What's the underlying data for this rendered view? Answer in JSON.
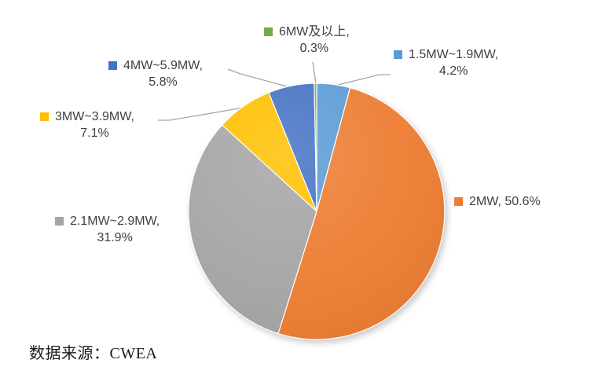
{
  "chart_data": {
    "type": "pie",
    "title": "",
    "start_angle_deg": 0,
    "direction": "clockwise",
    "total_percent": 99.9,
    "slices": [
      {
        "label": "1.5MW~1.9MW",
        "value": 4.2,
        "color": "#5B9BD5",
        "line1": "1.5MW~1.9MW,",
        "line2": "4.2%"
      },
      {
        "label": "2MW",
        "value": 50.6,
        "color": "#ED7D31",
        "line1": "2MW, 50.6%",
        "line2": ""
      },
      {
        "label": "2.1MW~2.9MW",
        "value": 31.9,
        "color": "#A5A5A5",
        "line1": "2.1MW~2.9MW,",
        "line2": "31.9%"
      },
      {
        "label": "3MW~3.9MW",
        "value": 7.1,
        "color": "#FFC000",
        "line1": "3MW~3.9MW,",
        "line2": "7.1%"
      },
      {
        "label": "4MW~5.9MW",
        "value": 5.8,
        "color": "#4472C4",
        "line1": "4MW~5.9MW,",
        "line2": "5.8%"
      },
      {
        "label": "6MW及以上",
        "value": 0.3,
        "color": "#70AD47",
        "line1": "6MW及以上,",
        "line2": "0.3%"
      }
    ],
    "legend_position": "outside-data-labels",
    "leader_line_color": "#A6A6A6",
    "label_text_color": "#3f3f3f",
    "grid": false
  },
  "source_note": "数据来源：CWEA"
}
